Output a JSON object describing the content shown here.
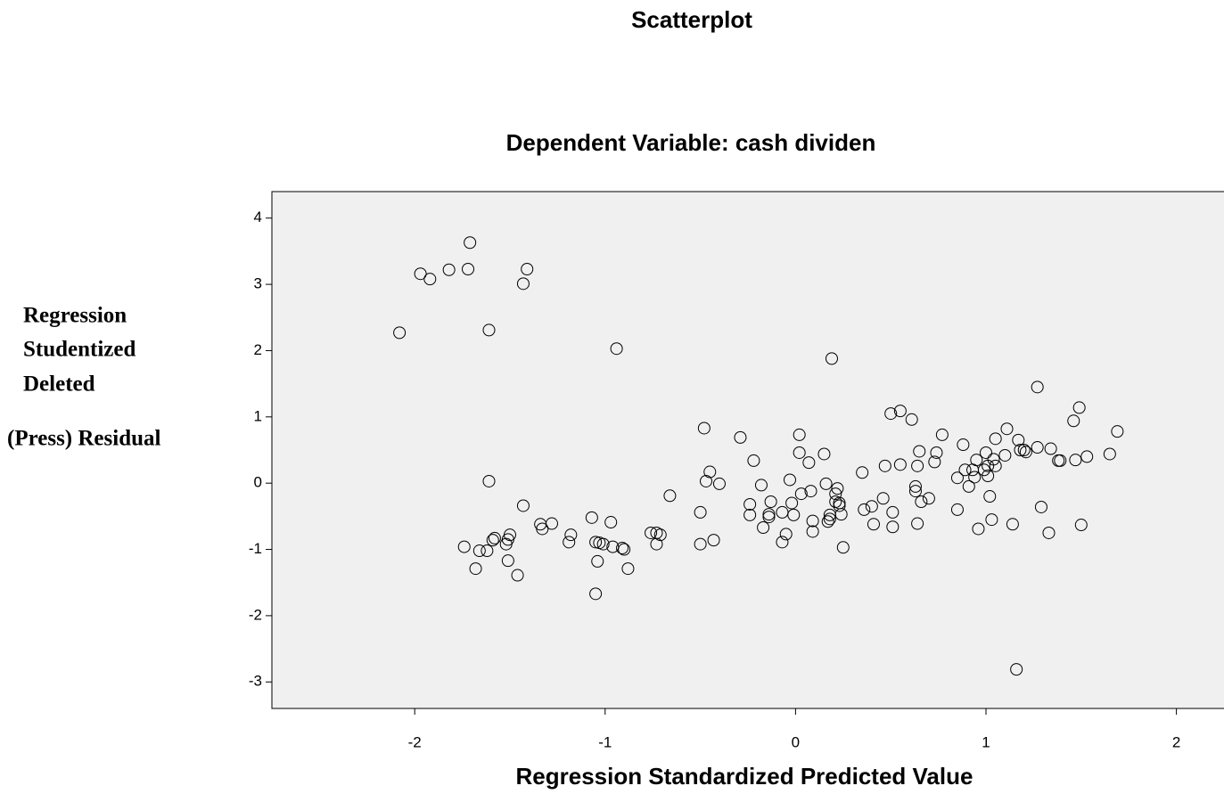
{
  "chart_data": {
    "type": "scatter",
    "title": "Scatterplot",
    "subtitle": "Dependent Variable: cash dividen",
    "x_label": "Regression Standardized Predicted Value",
    "y_label": [
      "Regression",
      "Studentized",
      "Deleted",
      "(Press) Residual"
    ],
    "xlim": [
      -2.75,
      2.25
    ],
    "xticks": [
      -2,
      -1,
      0,
      1,
      2
    ],
    "ylim": [
      -3.4,
      4.4
    ],
    "yticks": [
      -3,
      -2,
      -1,
      0,
      1,
      2,
      3,
      4
    ],
    "color": "#000000",
    "background": "#f0f0f0",
    "x": [
      -2.08,
      -1.97,
      -1.92,
      -1.82,
      -1.72,
      -1.71,
      -1.61,
      -1.43,
      -1.41,
      -1.61,
      -1.43,
      -1.74,
      -1.68,
      -1.66,
      -1.62,
      -1.59,
      -1.58,
      -1.52,
      -1.51,
      -1.5,
      -1.51,
      -1.46,
      -1.34,
      -1.33,
      -1.28,
      -1.19,
      -1.18,
      -1.07,
      -1.05,
      -1.03,
      -1.01,
      -1.04,
      -1.05,
      -0.97,
      -0.96,
      -0.91,
      -0.9,
      -0.88,
      -0.94,
      -0.76,
      -0.73,
      -0.71,
      -0.73,
      -0.66,
      -0.5,
      -0.5,
      -0.48,
      -0.47,
      -0.45,
      -0.43,
      -0.4,
      -0.29,
      -0.24,
      -0.24,
      -0.22,
      -0.18,
      -0.17,
      -0.14,
      -0.13,
      -0.14,
      -0.07,
      -0.07,
      -0.05,
      -0.03,
      -0.02,
      -0.01,
      0.02,
      0.02,
      0.03,
      0.07,
      0.08,
      0.09,
      0.09,
      0.15,
      0.16,
      0.17,
      0.18,
      0.18,
      0.19,
      0.21,
      0.21,
      0.22,
      0.23,
      0.23,
      0.24,
      0.25,
      0.35,
      0.36,
      0.4,
      0.41,
      0.46,
      0.47,
      0.5,
      0.51,
      0.51,
      0.55,
      0.55,
      0.61,
      0.63,
      0.63,
      0.64,
      0.64,
      0.65,
      0.66,
      0.7,
      0.73,
      0.74,
      0.77,
      0.85,
      0.85,
      0.88,
      0.89,
      0.91,
      0.93,
      0.94,
      0.95,
      0.96,
      0.99,
      1.0,
      1.01,
      1.01,
      1.02,
      1.03,
      1.04,
      1.05,
      1.05,
      1.1,
      1.11,
      1.14,
      1.16,
      1.17,
      1.18,
      1.2,
      1.21,
      1.27,
      1.27,
      1.29,
      1.33,
      1.34,
      1.38,
      1.39,
      1.46,
      1.47,
      1.49,
      1.5,
      1.53,
      1.65,
      1.69
    ],
    "y": [
      2.27,
      3.16,
      3.08,
      3.22,
      3.23,
      3.63,
      2.31,
      3.01,
      3.23,
      0.03,
      -0.34,
      -0.96,
      -1.29,
      -1.02,
      -1.02,
      -0.86,
      -0.83,
      -0.92,
      -0.85,
      -0.78,
      -1.17,
      -1.39,
      -0.62,
      -0.69,
      -0.61,
      -0.89,
      -0.78,
      -0.52,
      -0.89,
      -0.9,
      -0.92,
      -1.18,
      -1.67,
      -0.59,
      -0.96,
      -0.98,
      -1.0,
      -1.29,
      2.03,
      -0.75,
      -0.75,
      -0.78,
      -0.92,
      -0.19,
      -0.44,
      -0.92,
      0.83,
      0.03,
      0.17,
      -0.86,
      -0.01,
      0.69,
      -0.32,
      -0.48,
      0.34,
      -0.03,
      -0.67,
      -0.47,
      -0.28,
      -0.51,
      -0.44,
      -0.89,
      -0.77,
      0.05,
      -0.3,
      -0.48,
      0.73,
      0.46,
      -0.16,
      0.31,
      -0.12,
      -0.57,
      -0.73,
      0.44,
      -0.01,
      -0.58,
      -0.48,
      -0.54,
      1.88,
      -0.16,
      -0.28,
      -0.08,
      -0.34,
      -0.3,
      -0.47,
      -0.97,
      0.16,
      -0.4,
      -0.35,
      -0.62,
      -0.23,
      0.26,
      1.05,
      -0.44,
      -0.66,
      0.28,
      1.09,
      0.96,
      -0.05,
      -0.12,
      0.26,
      -0.61,
      0.48,
      -0.28,
      -0.23,
      0.32,
      0.46,
      0.73,
      -0.4,
      0.08,
      0.58,
      0.2,
      -0.05,
      0.2,
      0.09,
      0.35,
      -0.69,
      0.2,
      0.46,
      0.26,
      0.11,
      -0.2,
      -0.55,
      0.36,
      0.67,
      0.26,
      0.42,
      0.82,
      -0.62,
      -2.81,
      0.65,
      0.5,
      0.5,
      0.47,
      1.45,
      0.54,
      -0.36,
      -0.75,
      0.52,
      0.34,
      0.34,
      0.94,
      0.35,
      1.14,
      -0.63,
      0.4,
      0.44,
      0.78
    ]
  }
}
